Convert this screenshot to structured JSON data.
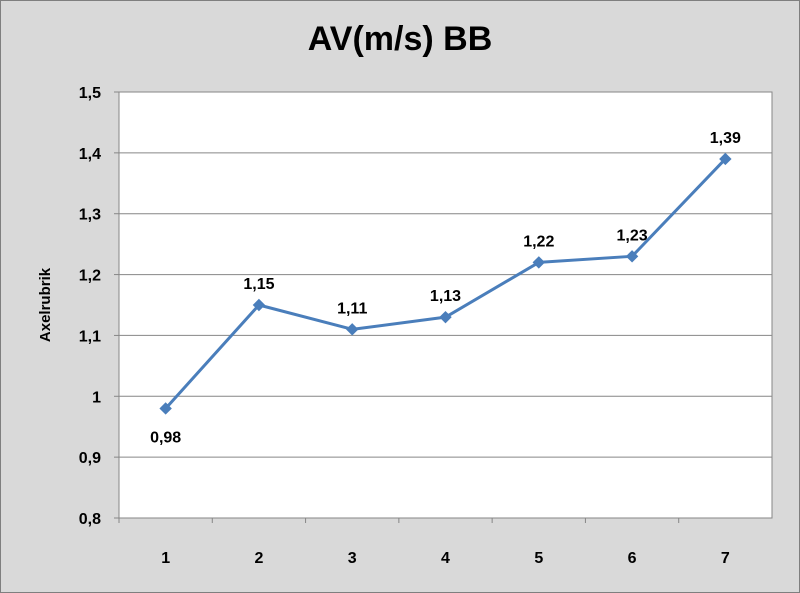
{
  "chart_data": {
    "type": "line",
    "title": "AV(m/s) BB",
    "xlabel": "",
    "ylabel": "Axelrubrik",
    "categories": [
      "1",
      "2",
      "3",
      "4",
      "5",
      "6",
      "7"
    ],
    "series": [
      {
        "values": [
          0.98,
          1.15,
          1.11,
          1.13,
          1.22,
          1.23,
          1.39
        ],
        "data_labels": [
          "0,98",
          "1,15",
          "1,11",
          "1,13",
          "1,22",
          "1,23",
          "1,39"
        ],
        "color": "#4a7ebb",
        "marker": "diamond"
      }
    ],
    "ylim": [
      0.8,
      1.5
    ],
    "yticks": [
      0.8,
      0.9,
      1.0,
      1.1,
      1.2,
      1.3,
      1.4,
      1.5
    ],
    "ytick_labels": [
      "0,8",
      "0,9",
      "1",
      "1,1",
      "1,2",
      "1,3",
      "1,4",
      "1,5"
    ],
    "grid": true,
    "legend": "none",
    "background_color": "#d9d9d9",
    "plot_background_color": "#ffffff",
    "gridline_color": "#868686"
  }
}
